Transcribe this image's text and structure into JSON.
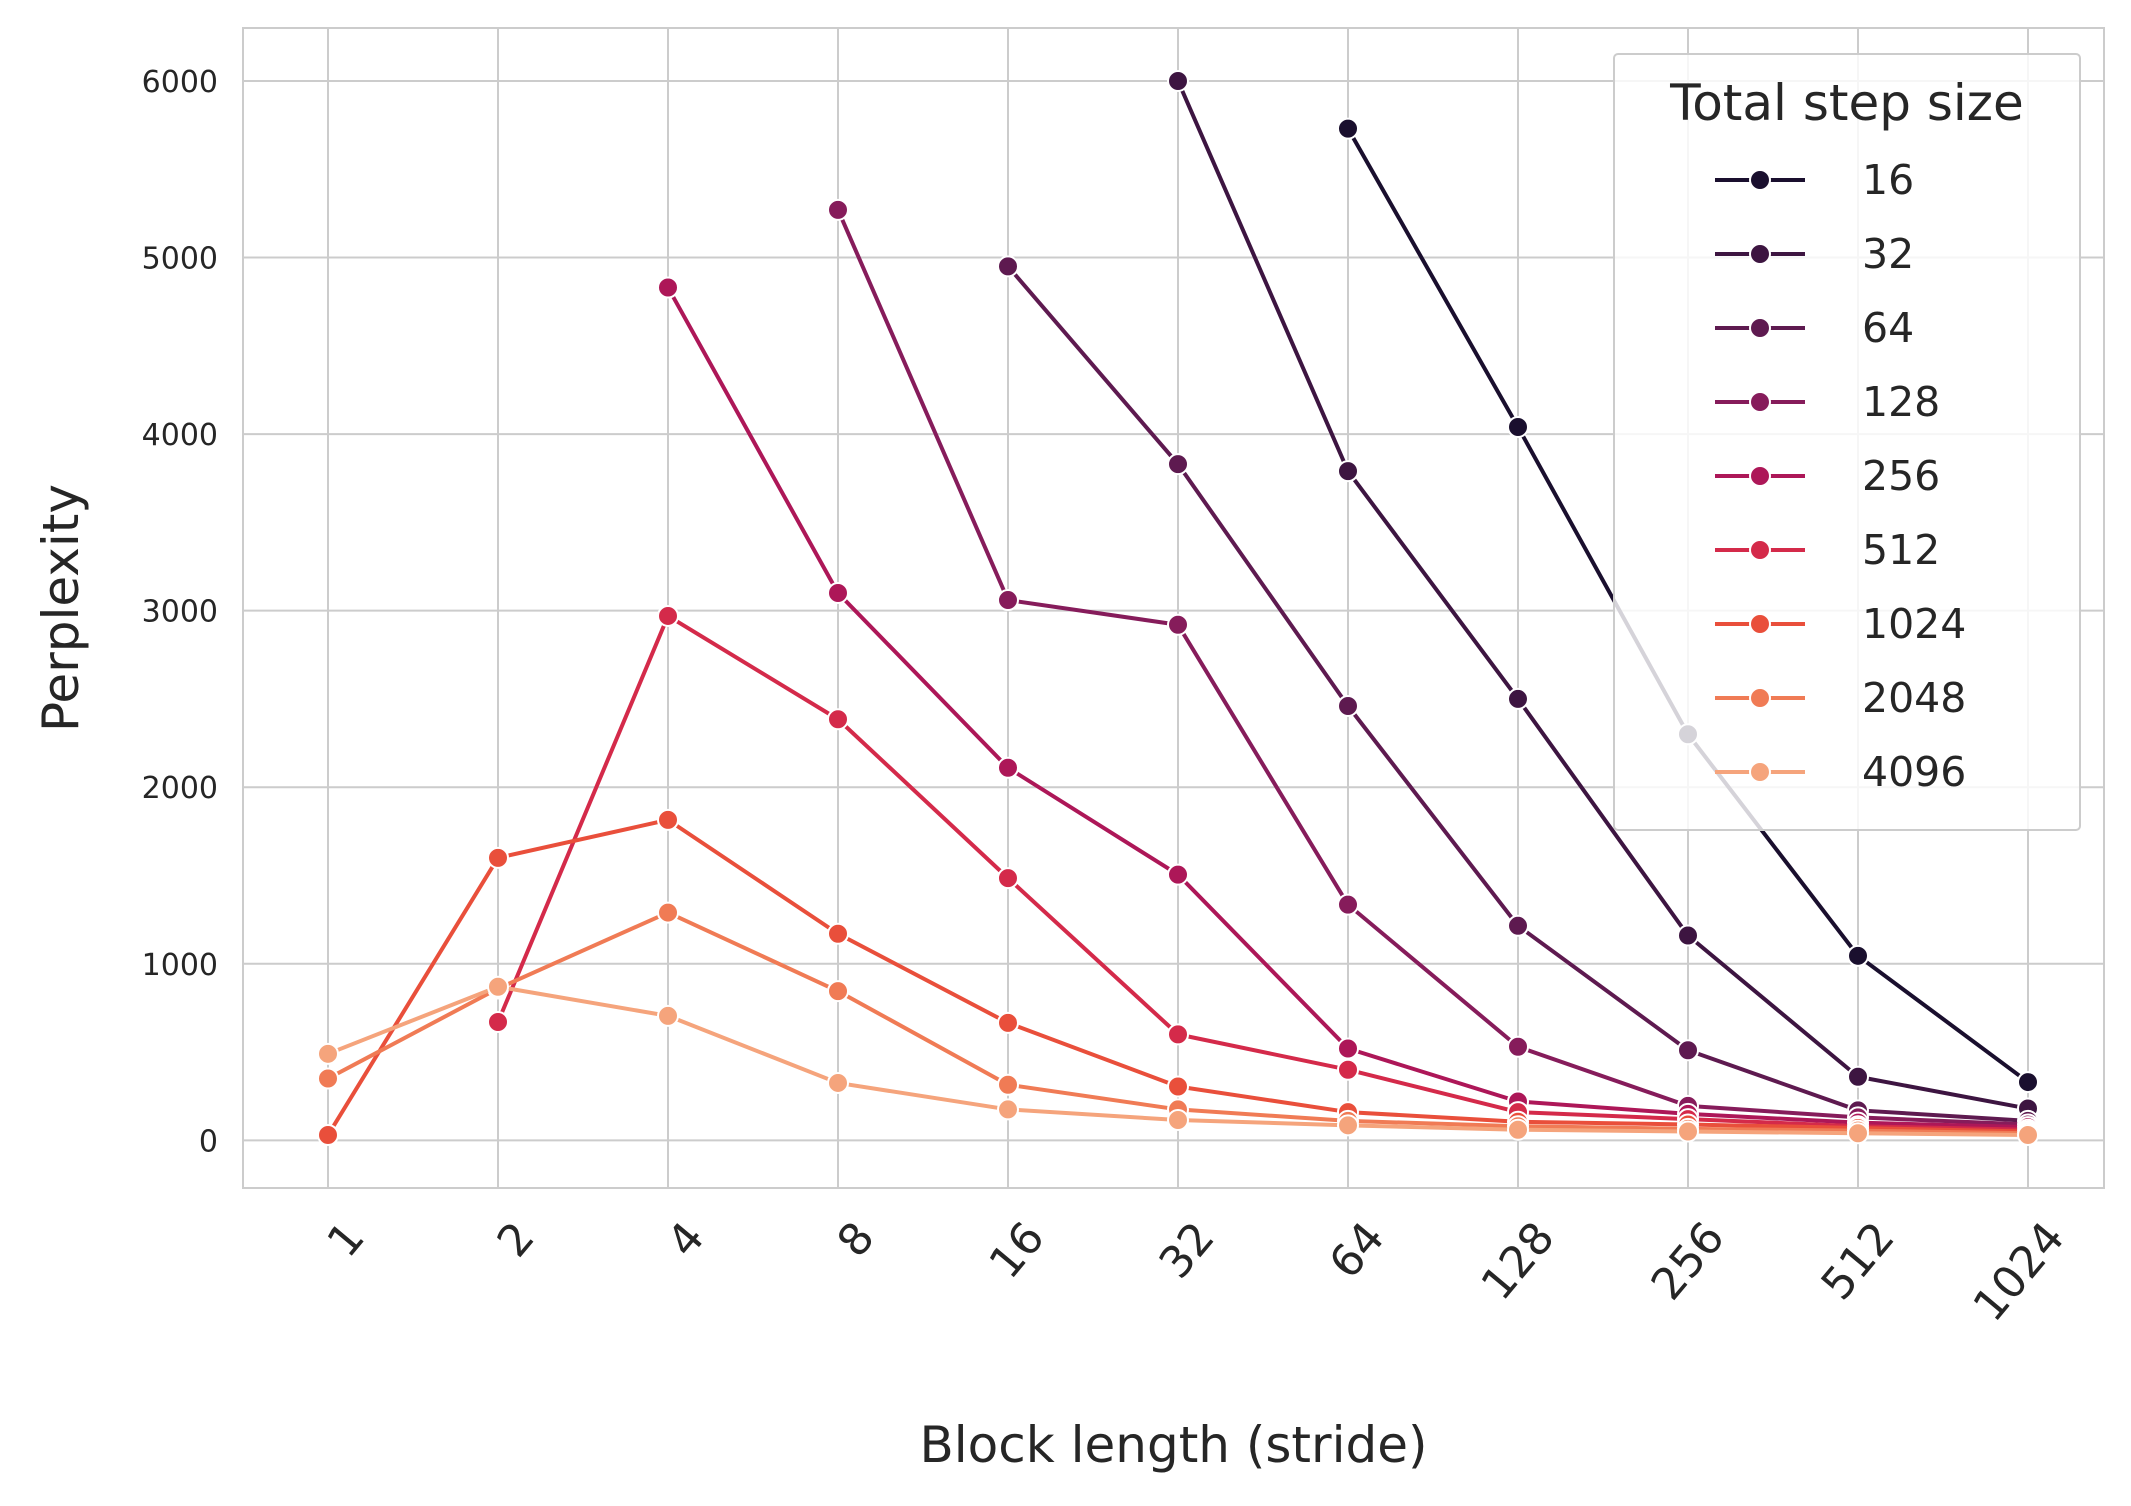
{
  "chart_data": {
    "type": "line",
    "xlabel": "Block length (stride)",
    "ylabel": "Perplexity",
    "x_scale": "log2",
    "categories": [
      "1",
      "2",
      "4",
      "8",
      "16",
      "32",
      "64",
      "128",
      "256",
      "512",
      "1024"
    ],
    "x": [
      1,
      2,
      4,
      8,
      16,
      32,
      64,
      128,
      256,
      512,
      1024
    ],
    "yticks": [
      0,
      1000,
      2000,
      3000,
      4000,
      5000,
      6000
    ],
    "ylim": [
      -270,
      6300
    ],
    "grid": true,
    "legend": {
      "title": "Total step size",
      "position": "top-right"
    },
    "series": [
      {
        "name": "16",
        "color": "#1a0f2e",
        "x": [
          64,
          128,
          256,
          512,
          1024
        ],
        "values": [
          5730,
          4040,
          2300,
          1045,
          330
        ]
      },
      {
        "name": "32",
        "color": "#3d1541",
        "x": [
          32,
          64,
          128,
          256,
          512,
          1024
        ],
        "values": [
          6000,
          3790,
          2500,
          1160,
          360,
          180
        ]
      },
      {
        "name": "64",
        "color": "#5e1a50",
        "x": [
          16,
          32,
          64,
          128,
          256,
          512,
          1024
        ],
        "values": [
          4950,
          3830,
          2460,
          1215,
          510,
          170,
          110
        ]
      },
      {
        "name": "128",
        "color": "#861c5b",
        "x": [
          8,
          16,
          32,
          64,
          128,
          256,
          512,
          1024
        ],
        "values": [
          5270,
          3060,
          2920,
          1335,
          530,
          195,
          130,
          90
        ]
      },
      {
        "name": "256",
        "color": "#ad1758",
        "x": [
          4,
          8,
          16,
          32,
          64,
          128,
          256,
          512,
          1024
        ],
        "values": [
          4830,
          3100,
          2110,
          1505,
          520,
          220,
          150,
          100,
          75
        ]
      },
      {
        "name": "512",
        "color": "#d42a4a",
        "x": [
          2,
          4,
          8,
          16,
          32,
          64,
          128,
          256,
          512,
          1024
        ],
        "values": [
          670,
          2970,
          2385,
          1485,
          600,
          400,
          160,
          120,
          80,
          60
        ]
      },
      {
        "name": "1024",
        "color": "#e94f3b",
        "x": [
          1,
          2,
          4,
          8,
          16,
          32,
          64,
          128,
          256,
          512,
          1024
        ],
        "values": [
          30,
          1600,
          1815,
          1170,
          665,
          305,
          160,
          105,
          90,
          70,
          50
        ]
      },
      {
        "name": "2048",
        "color": "#f07b55",
        "x": [
          1,
          2,
          4,
          8,
          16,
          32,
          64,
          128,
          256,
          512,
          1024
        ],
        "values": [
          350,
          860,
          1290,
          845,
          315,
          175,
          110,
          80,
          65,
          55,
          40
        ]
      },
      {
        "name": "4096",
        "color": "#f5a47c",
        "x": [
          1,
          2,
          4,
          8,
          16,
          32,
          64,
          128,
          256,
          512,
          1024
        ],
        "values": [
          490,
          870,
          705,
          325,
          175,
          115,
          85,
          60,
          50,
          40,
          30
        ]
      }
    ]
  }
}
